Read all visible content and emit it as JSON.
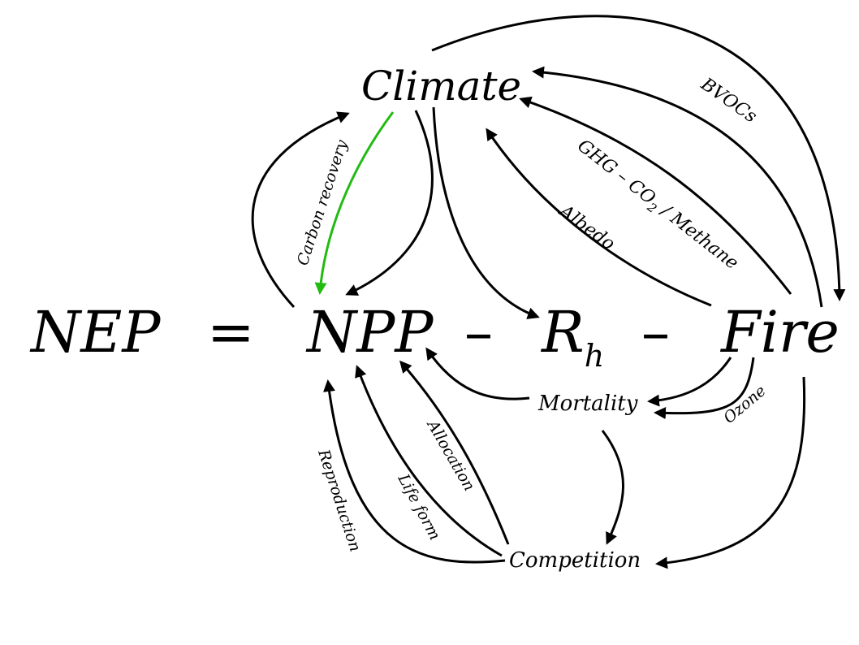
{
  "equation": {
    "nep": "NEP",
    "equals": "=",
    "npp": "NPP",
    "minus1": "–",
    "rh_main": "R",
    "rh_sub": "h",
    "minus2": "–",
    "fire": "Fire"
  },
  "nodes": {
    "climate": "Climate",
    "mortality": "Mortality",
    "competition": "Competition"
  },
  "edges": {
    "carbon_recovery": "Carbon recovery",
    "bvocs": "BVOCs",
    "ghg_main": "GHG – CO",
    "ghg_sub": "2",
    "ghg_tail": " / Methane",
    "albedo": "Albedo",
    "ozone": "Ozone",
    "allocation": "Allocation",
    "life_form": "Life form",
    "reproduction": "Reproduction"
  },
  "colors": {
    "arrow": "#000000",
    "carbon_recovery_arrow": "#22bb11",
    "background": "#ffffff"
  }
}
